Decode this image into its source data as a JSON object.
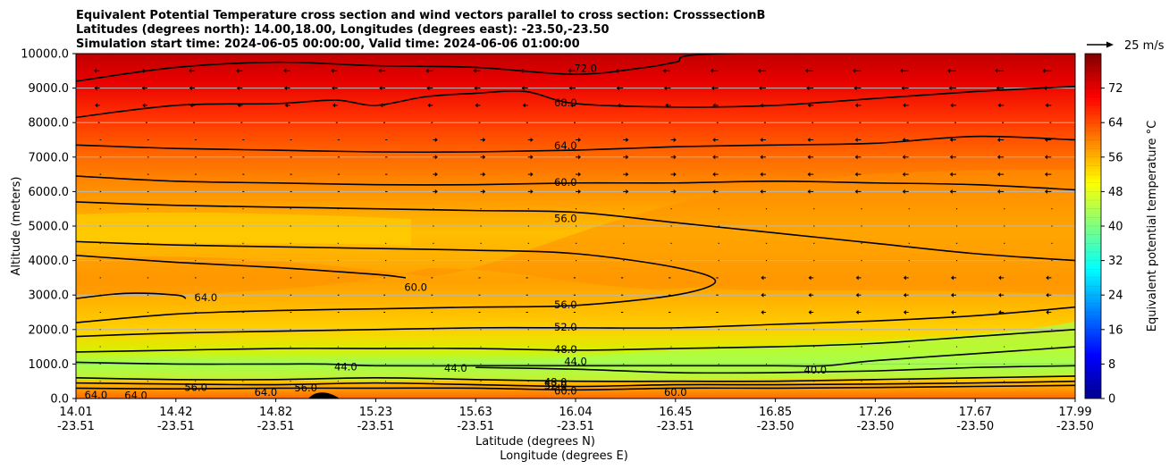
{
  "chart_data": {
    "type": "contour",
    "title": [
      "Equivalent Potential Temperature cross section and wind vectors parallel to cross section: CrosssectionB",
      "Latitudes (degrees north): 14.00,18.00, Longitudes (degrees east): -23.50,-23.50",
      "Simulation start time: 2024-06-05 00:00:00, Valid time: 2024-06-06 01:00:00"
    ],
    "ylabel": "Altitude (meters)",
    "xlabel_lat": "Latitude (degrees N)",
    "xlabel_lon": "Longitude (degrees E)",
    "ylim": [
      0,
      10000
    ],
    "y_ticks": [
      "0.0",
      "1000.0",
      "2000.0",
      "3000.0",
      "4000.0",
      "5000.0",
      "6000.0",
      "7000.0",
      "8000.0",
      "9000.0",
      "10000.0"
    ],
    "x_ticks_lat": [
      "14.01",
      "14.42",
      "14.82",
      "15.23",
      "15.63",
      "16.04",
      "16.45",
      "16.85",
      "17.26",
      "17.67",
      "17.99"
    ],
    "x_ticks_lon": [
      "-23.51",
      "-23.51",
      "-23.51",
      "-23.51",
      "-23.51",
      "-23.51",
      "-23.51",
      "-23.50",
      "-23.50",
      "-23.50",
      "-23.50"
    ],
    "grid": "horizontal",
    "colorbar": {
      "label": "Equivalent potential temperature $^\\circ$C",
      "range": [
        0,
        80
      ],
      "ticks": [
        "0",
        "8",
        "16",
        "24",
        "32",
        "40",
        "48",
        "56",
        "64",
        "72"
      ],
      "colormap": "jet"
    },
    "quiver_key": "25 m/s",
    "contour_labels": [
      {
        "text": "72.0",
        "x": 0.51,
        "alt": 9550
      },
      {
        "text": "68.0",
        "x": 0.49,
        "alt": 8550
      },
      {
        "text": "64.0",
        "x": 0.49,
        "alt": 7300
      },
      {
        "text": "60.0",
        "x": 0.49,
        "alt": 6250
      },
      {
        "text": "56.0",
        "x": 0.49,
        "alt": 5200
      },
      {
        "text": "64.0",
        "x": 0.13,
        "alt": 2900
      },
      {
        "text": "60.0",
        "x": 0.34,
        "alt": 3200
      },
      {
        "text": "56.0",
        "x": 0.49,
        "alt": 2700
      },
      {
        "text": "52.0",
        "x": 0.49,
        "alt": 2050
      },
      {
        "text": "48.0",
        "x": 0.49,
        "alt": 1400
      },
      {
        "text": "44.0",
        "x": 0.5,
        "alt": 1050
      },
      {
        "text": "44.0",
        "x": 0.27,
        "alt": 900
      },
      {
        "text": "44.0",
        "x": 0.38,
        "alt": 850
      },
      {
        "text": "40.0",
        "x": 0.74,
        "alt": 800
      },
      {
        "text": "48.0",
        "x": 0.48,
        "alt": 450
      },
      {
        "text": "52.0",
        "x": 0.48,
        "alt": 350
      },
      {
        "text": "60.0",
        "x": 0.49,
        "alt": 200
      },
      {
        "text": "60.0",
        "x": 0.6,
        "alt": 150
      },
      {
        "text": "56.0",
        "x": 0.12,
        "alt": 300
      },
      {
        "text": "56.0",
        "x": 0.23,
        "alt": 280
      },
      {
        "text": "64.0",
        "x": 0.02,
        "alt": 80
      },
      {
        "text": "64.0",
        "x": 0.06,
        "alt": 60
      },
      {
        "text": "64.0",
        "x": 0.19,
        "alt": 150
      }
    ],
    "contours": [
      {
        "level": 72,
        "x": [
          0,
          0.1,
          0.2,
          0.3,
          0.4,
          0.5,
          0.57,
          0.6,
          0.65,
          1.0
        ],
        "alt": [
          9200,
          9600,
          9750,
          9650,
          9600,
          9400,
          9600,
          9750,
          10000,
          10000
        ]
      },
      {
        "level": 68,
        "x": [
          0,
          0.1,
          0.2,
          0.26,
          0.3,
          0.35,
          0.4,
          0.45,
          0.5,
          0.6,
          0.7,
          0.8,
          0.9,
          1.0
        ],
        "alt": [
          8150,
          8500,
          8550,
          8650,
          8500,
          8750,
          8850,
          8900,
          8550,
          8450,
          8500,
          8700,
          8900,
          9050
        ]
      },
      {
        "level": 64,
        "x": [
          0,
          0.1,
          0.2,
          0.3,
          0.4,
          0.5,
          0.6,
          0.7,
          0.8,
          0.9,
          1.0
        ],
        "alt": [
          7350,
          7250,
          7200,
          7150,
          7150,
          7200,
          7300,
          7350,
          7400,
          7600,
          7500
        ]
      },
      {
        "level": 60,
        "x": [
          0,
          0.1,
          0.2,
          0.3,
          0.4,
          0.5,
          0.6,
          0.7,
          0.8,
          0.9,
          1.0
        ],
        "alt": [
          6450,
          6300,
          6250,
          6200,
          6200,
          6250,
          6250,
          6300,
          6250,
          6200,
          6050
        ]
      },
      {
        "level": 56,
        "x": [
          0,
          0.1,
          0.2,
          0.3,
          0.4,
          0.5,
          0.6,
          0.7,
          0.8,
          0.9,
          1.0
        ],
        "alt": [
          5700,
          5600,
          5550,
          5500,
          5450,
          5400,
          5100,
          4800,
          4500,
          4200,
          4000
        ]
      },
      {
        "level": 56,
        "x": [
          0,
          0.1,
          0.2,
          0.3,
          0.4,
          0.5,
          0.6,
          0.64,
          0.6,
          0.5,
          0.4,
          0.3,
          0.2,
          0.1,
          0.0
        ],
        "alt": [
          4550,
          4450,
          4400,
          4350,
          4300,
          4200,
          3800,
          3400,
          3000,
          2700,
          2650,
          2600,
          2550,
          2450,
          2200
        ]
      },
      {
        "level": 60,
        "x": [
          0,
          0.1,
          0.2,
          0.3,
          0.33
        ],
        "alt": [
          4150,
          3950,
          3800,
          3600,
          3500
        ]
      },
      {
        "level": 64,
        "x": [
          0,
          0.05,
          0.1,
          0.11
        ],
        "alt": [
          2900,
          3050,
          3000,
          2900
        ]
      },
      {
        "level": 52,
        "x": [
          0,
          0.1,
          0.2,
          0.3,
          0.4,
          0.5,
          0.6,
          0.7,
          0.8,
          0.9,
          1.0
        ],
        "alt": [
          1800,
          1900,
          1950,
          2000,
          2050,
          2050,
          2050,
          2150,
          2250,
          2400,
          2650
        ]
      },
      {
        "level": 48,
        "x": [
          0,
          0.1,
          0.2,
          0.3,
          0.4,
          0.5,
          0.6,
          0.7,
          0.8,
          0.9,
          1.0
        ],
        "alt": [
          1350,
          1400,
          1450,
          1450,
          1450,
          1400,
          1450,
          1500,
          1600,
          1800,
          2000
        ]
      },
      {
        "level": 44,
        "x": [
          0,
          0.1,
          0.2,
          0.25,
          0.3,
          0.4,
          0.5,
          0.6,
          0.7,
          0.75,
          0.8,
          0.9,
          1.0
        ],
        "alt": [
          1050,
          1000,
          1000,
          1000,
          950,
          950,
          950,
          950,
          950,
          950,
          1100,
          1300,
          1500
        ]
      },
      {
        "level": 40,
        "x": [
          0.4,
          0.5,
          0.6,
          0.7,
          0.8,
          0.9,
          1.0
        ],
        "alt": [
          900,
          850,
          750,
          750,
          800,
          900,
          950
        ]
      },
      {
        "level": 48,
        "x": [
          0,
          0.1,
          0.2,
          0.3,
          0.4,
          0.5,
          0.6,
          0.7,
          0.8,
          0.9,
          1.0
        ],
        "alt": [
          600,
          550,
          550,
          600,
          550,
          500,
          500,
          500,
          550,
          600,
          650
        ]
      },
      {
        "level": 52,
        "x": [
          0,
          0.1,
          0.2,
          0.3,
          0.4,
          0.5,
          0.6,
          0.7,
          0.8,
          0.9,
          1.0
        ],
        "alt": [
          450,
          420,
          400,
          450,
          400,
          350,
          400,
          400,
          420,
          450,
          500
        ]
      },
      {
        "level": 56,
        "x": [
          0,
          0.1,
          0.2,
          0.3,
          0.4,
          0.5,
          0.6,
          0.7,
          0.8,
          0.9,
          1.0
        ],
        "alt": [
          300,
          280,
          300,
          300,
          300,
          250,
          300,
          300,
          320,
          350,
          380
        ]
      }
    ]
  }
}
